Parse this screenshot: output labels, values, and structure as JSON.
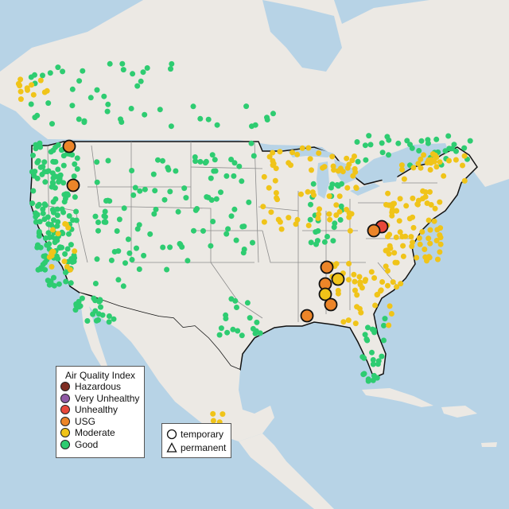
{
  "legend": {
    "title": "Air Quality Index",
    "categories": [
      {
        "label": "Hazardous",
        "color": "#7e2d22"
      },
      {
        "label": "Very Unhealthy",
        "color": "#8f5aa6"
      },
      {
        "label": "Unhealthy",
        "color": "#e8483a"
      },
      {
        "label": "USG",
        "color": "#ec8529"
      },
      {
        "label": "Moderate",
        "color": "#f0c419"
      },
      {
        "label": "Good",
        "color": "#2ecc71"
      }
    ]
  },
  "monitor_legend": {
    "temporary": {
      "label": "temporary",
      "icon": "circle-icon"
    },
    "permanent": {
      "label": "permanent",
      "icon": "triangle-icon"
    }
  },
  "colors": {
    "ocean": "#b7d3e6",
    "land": "#ece9e4",
    "lakes": "#b7d3e6",
    "state_lines": "#8c8c8c",
    "border": "#111111"
  },
  "monitors": {
    "temporary_elevated": [
      {
        "location": "northern Idaho",
        "category": "USG"
      },
      {
        "location": "central Idaho",
        "category": "USG"
      },
      {
        "location": "West Virginia",
        "category": "Unhealthy"
      },
      {
        "location": "West Virginia",
        "category": "USG"
      },
      {
        "location": "Tennessee",
        "category": "USG"
      },
      {
        "location": "Tennessee",
        "category": "Moderate"
      },
      {
        "location": "Alabama",
        "category": "USG"
      },
      {
        "location": "Alabama",
        "category": "Moderate"
      },
      {
        "location": "Alabama",
        "category": "USG"
      },
      {
        "location": "Louisiana",
        "category": "USG"
      }
    ]
  }
}
